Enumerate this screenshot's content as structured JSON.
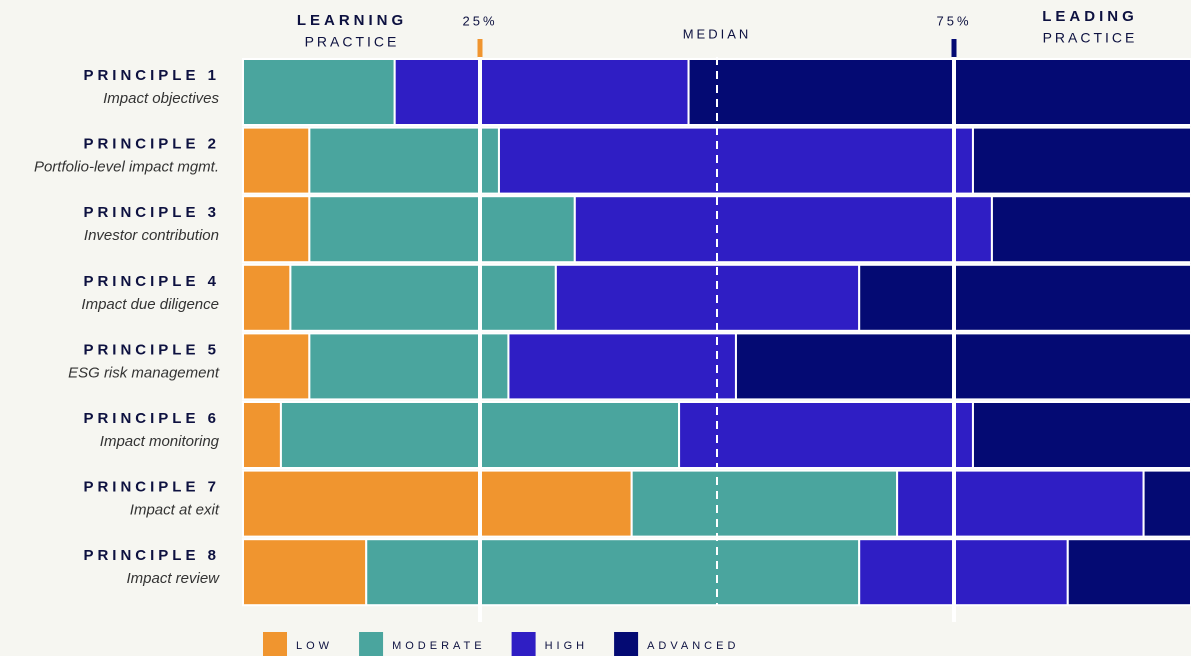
{
  "chart_data": {
    "type": "stacked_bar_horizontal",
    "annotations": {
      "left_title": "LEARNING",
      "left_subtitle": "PRACTICE",
      "right_title": "LEADING",
      "right_subtitle": "PRACTICE"
    },
    "categories": [
      "PRINCIPLE 1",
      "PRINCIPLE 2",
      "PRINCIPLE 3",
      "PRINCIPLE 4",
      "PRINCIPLE 5",
      "PRINCIPLE 6",
      "PRINCIPLE 7",
      "PRINCIPLE 8"
    ],
    "category_descriptions": [
      "Impact objectives",
      "Portfolio-level impact mgmt.",
      "Investor contribution",
      "Impact due diligence",
      "ESG risk management",
      "Impact monitoring",
      "Impact at exit",
      "Impact review"
    ],
    "series": [
      {
        "name": "LOW",
        "color": "#f0952f",
        "values": [
          0,
          7,
          7,
          5,
          7,
          4,
          41,
          13
        ]
      },
      {
        "name": "MODERATE",
        "color": "#4aa59e",
        "values": [
          16,
          20,
          28,
          28,
          21,
          42,
          28,
          52
        ]
      },
      {
        "name": "HIGH",
        "color": "#2f1ec4",
        "values": [
          31,
          50,
          44,
          32,
          24,
          31,
          26,
          22
        ]
      },
      {
        "name": "ADVANCED",
        "color": "#040a73",
        "values": [
          53,
          23,
          21,
          35,
          48,
          23,
          5,
          13
        ]
      }
    ],
    "xlim": [
      0,
      100
    ],
    "reference_lines": [
      {
        "value": 25,
        "label": "25%",
        "color": "#f0952f",
        "style": "solid"
      },
      {
        "value": 50,
        "label": "MEDIAN",
        "style": "dashed"
      },
      {
        "value": 75,
        "label": "75%",
        "color": "#040a73",
        "style": "solid"
      }
    ],
    "legend": "bottom"
  }
}
